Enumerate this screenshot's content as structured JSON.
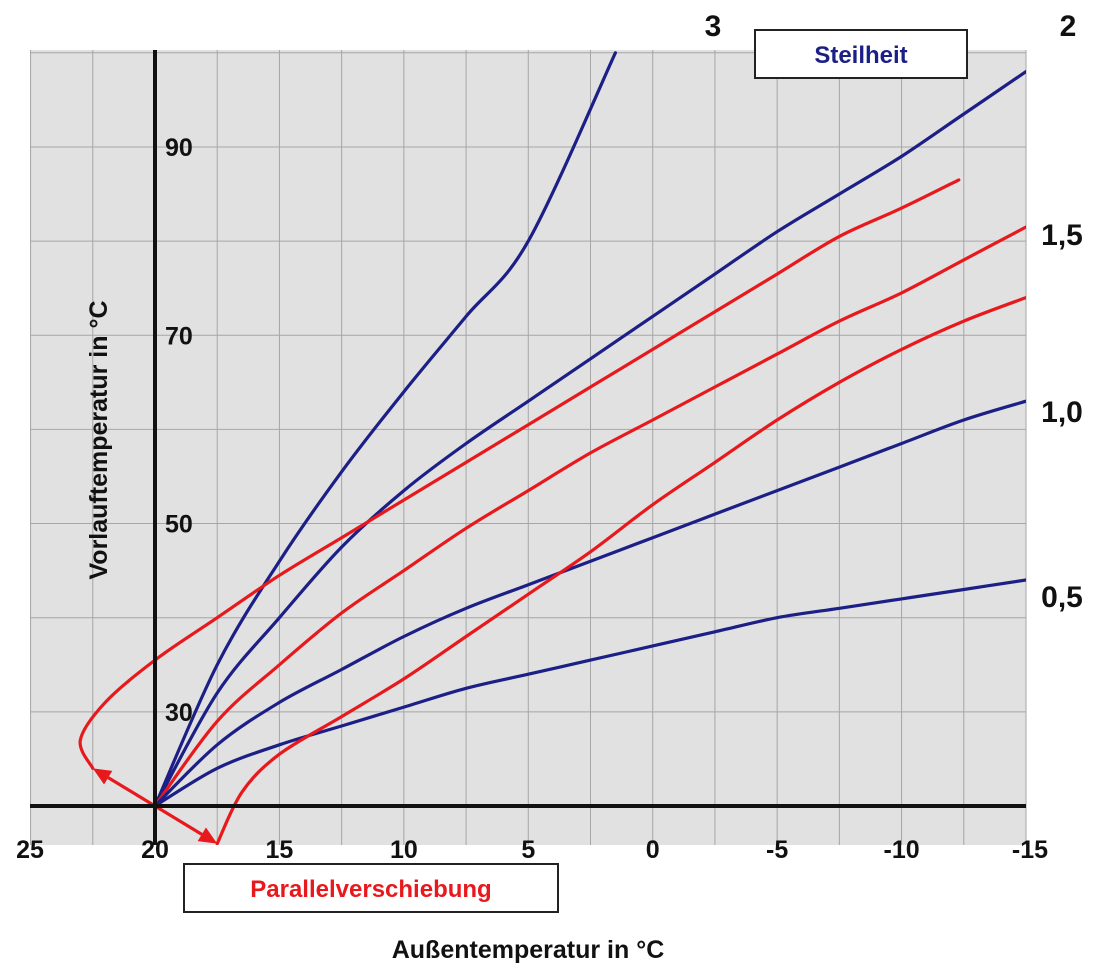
{
  "chart_data": {
    "type": "line",
    "xlabel": "Außentemperatur in °C",
    "ylabel": "Vorlauftemperatur in °C",
    "xlim": [
      25,
      -15
    ],
    "ylim": [
      20,
      100
    ],
    "x_ticks": [
      "25",
      "20",
      "15",
      "10",
      "5",
      "0",
      "-5",
      "-10",
      "-15"
    ],
    "y_ticks": [
      "30",
      "50",
      "70",
      "90"
    ],
    "grid": true,
    "steilheit_label": "Steilheit",
    "parallel_label": "Parallelverschiebung",
    "colors": {
      "steilheit": "#1c1f86",
      "parallel": "#e8191c",
      "plot_bg": "#e1e1e1",
      "grid": "#a6a6a6"
    },
    "series": [
      {
        "name": "3",
        "color": "#1c1f86",
        "x": [
          20,
          17.5,
          15,
          12.5,
          10,
          7.5,
          5,
          1.5
        ],
        "y": [
          20,
          35,
          46,
          55.5,
          64,
          72,
          80,
          100
        ]
      },
      {
        "name": "2",
        "color": "#1c1f86",
        "x": [
          20,
          17.5,
          15,
          12.5,
          10,
          7.5,
          5,
          2.5,
          0,
          -2.5,
          -5,
          -7.5,
          -10,
          -12.5,
          -15
        ],
        "y": [
          20,
          32,
          40,
          47.5,
          53.5,
          58.5,
          63,
          67.5,
          72,
          76.5,
          81,
          85,
          89,
          93.5,
          98
        ]
      },
      {
        "name": "1,5",
        "color": "#e8191c",
        "x": [
          20,
          17.5,
          15,
          12.5,
          10,
          7.5,
          5,
          2.5,
          0,
          -2.5,
          -5,
          -7.5,
          -10,
          -12.5,
          -15
        ],
        "y": [
          20,
          29,
          35,
          40.5,
          45,
          49.5,
          53.5,
          57.5,
          61,
          64.5,
          68,
          71.5,
          74.5,
          78,
          81.5
        ]
      },
      {
        "name": "1,0",
        "color": "#1c1f86",
        "x": [
          20,
          17.5,
          15,
          12.5,
          10,
          7.5,
          5,
          2.5,
          0,
          -2.5,
          -5,
          -7.5,
          -10,
          -12.5,
          -15
        ],
        "y": [
          20,
          26.5,
          31,
          34.5,
          38,
          41,
          43.5,
          46,
          48.5,
          51,
          53.5,
          56,
          58.5,
          61,
          63
        ]
      },
      {
        "name": "0,5",
        "color": "#1c1f86",
        "x": [
          20,
          17.5,
          15,
          12.5,
          10,
          7.5,
          5,
          2.5,
          0,
          -2.5,
          -5,
          -7.5,
          -10,
          -12.5,
          -15
        ],
        "y": [
          20,
          24,
          26.5,
          28.5,
          30.5,
          32.5,
          34,
          35.5,
          37,
          38.5,
          40,
          41,
          42,
          43,
          44
        ]
      },
      {
        "name": "",
        "color": "#e8191c",
        "x": [
          22.5,
          23,
          22,
          20,
          17.5,
          15,
          12.5,
          10,
          7.5,
          5,
          2.5,
          0,
          -2.5,
          -5,
          -7.5,
          -10,
          -12.3
        ],
        "y": [
          24,
          27,
          31,
          35.5,
          40,
          44.5,
          48.5,
          52.5,
          56.5,
          60.5,
          64.5,
          68.5,
          72.5,
          76.5,
          80.5,
          83.5,
          86.5
        ]
      },
      {
        "name": "",
        "color": "#e8191c",
        "x": [
          17.5,
          16.5,
          15,
          12.5,
          10,
          7.5,
          5,
          2.5,
          0,
          -2.5,
          -5,
          -7.5,
          -10,
          -12.5,
          -15
        ],
        "y": [
          16,
          21.5,
          25.5,
          29.5,
          33.5,
          38,
          42.5,
          47,
          52,
          56.5,
          61,
          65,
          68.5,
          71.5,
          74
        ]
      }
    ],
    "arrows": [
      {
        "x": [
          20,
          22.5
        ],
        "y": [
          20,
          24
        ]
      },
      {
        "x": [
          20,
          17.5
        ],
        "y": [
          20,
          16
        ]
      }
    ]
  }
}
